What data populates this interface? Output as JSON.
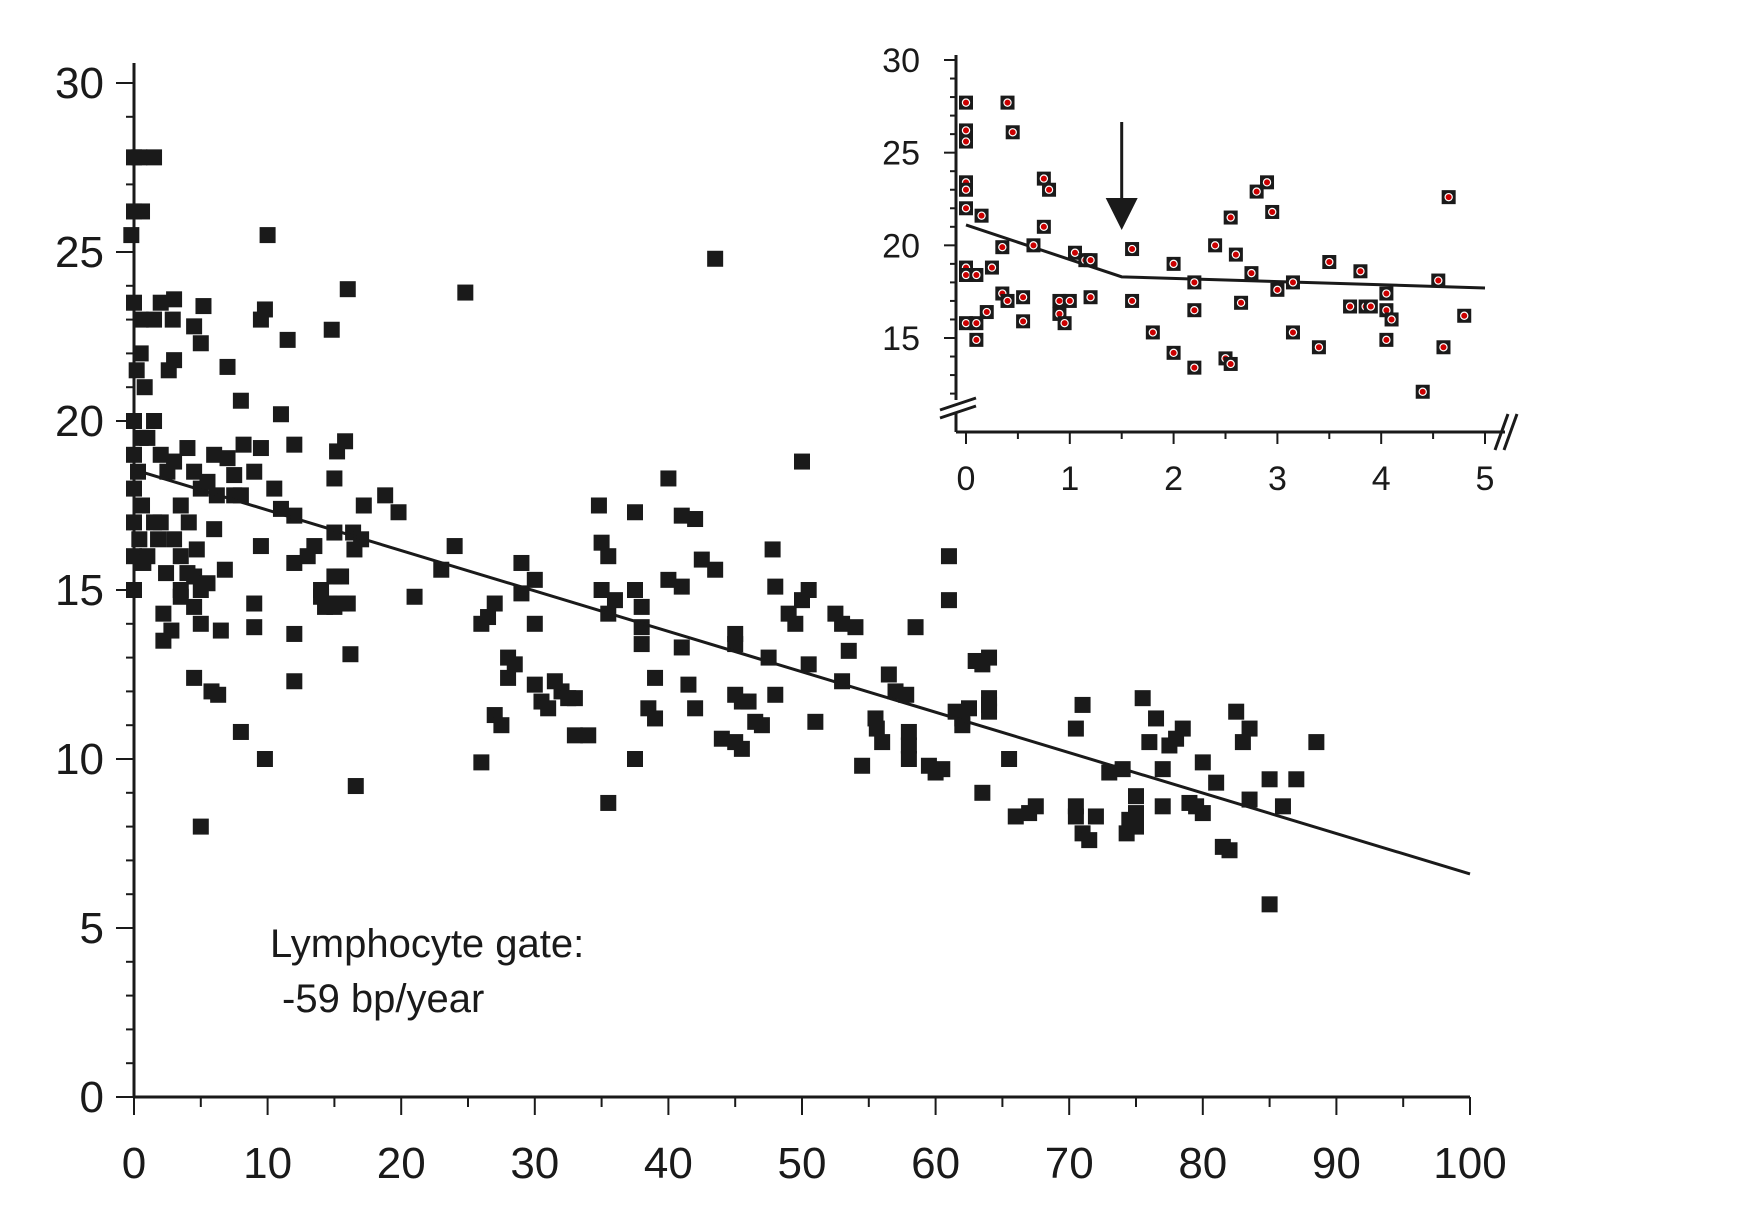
{
  "chart_data": [
    {
      "type": "scatter",
      "title": "",
      "xlabel": "",
      "ylabel": "",
      "xlim": [
        0,
        100
      ],
      "ylim": [
        0,
        30
      ],
      "x_ticks": [
        "0",
        "10",
        "20",
        "30",
        "40",
        "50",
        "60",
        "70",
        "80",
        "90",
        "100"
      ],
      "y_ticks": [
        "0",
        "5",
        "10",
        "15",
        "20",
        "25",
        "30"
      ],
      "annotation_lines": [
        "Lymphocyte gate:",
        "-59 bp/year"
      ],
      "fit_line": {
        "x": [
          0.5,
          100
        ],
        "y": [
          18.5,
          6.6
        ]
      },
      "marker_color": "#1a1a1a",
      "grid": false,
      "points": [
        [
          0,
          27.8
        ],
        [
          0.4,
          27.8
        ],
        [
          1.5,
          27.8
        ],
        [
          0,
          26.2
        ],
        [
          0.6,
          26.2
        ],
        [
          -0.2,
          25.5
        ],
        [
          0,
          23.5
        ],
        [
          0.5,
          23
        ],
        [
          0.5,
          22
        ],
        [
          0.2,
          21.5
        ],
        [
          0.8,
          21
        ],
        [
          0,
          20
        ],
        [
          0.5,
          19.5
        ],
        [
          0,
          19
        ],
        [
          0.3,
          18.5
        ],
        [
          0,
          18
        ],
        [
          0.6,
          17.5
        ],
        [
          0,
          17
        ],
        [
          0.4,
          16.5
        ],
        [
          0,
          16
        ],
        [
          0.7,
          15.8
        ],
        [
          0,
          15
        ],
        [
          1,
          16
        ],
        [
          1.5,
          17
        ],
        [
          1.8,
          16.5
        ],
        [
          1,
          19.5
        ],
        [
          1.5,
          20
        ],
        [
          2,
          19
        ],
        [
          2.5,
          18.5
        ],
        [
          3,
          18.8
        ],
        [
          2,
          17
        ],
        [
          3,
          16.5
        ],
        [
          2.4,
          15.5
        ],
        [
          3.5,
          16
        ],
        [
          2.2,
          14.3
        ],
        [
          2.8,
          13.8
        ],
        [
          2.2,
          13.5
        ],
        [
          3.5,
          15
        ],
        [
          2,
          23.5
        ],
        [
          1.5,
          23
        ],
        [
          3,
          23.6
        ],
        [
          2.9,
          23
        ],
        [
          3,
          21.8
        ],
        [
          2.6,
          21.5
        ],
        [
          4,
          19.2
        ],
        [
          4.5,
          18.5
        ],
        [
          3.5,
          17.5
        ],
        [
          4.1,
          17
        ],
        [
          4.7,
          16.2
        ],
        [
          4,
          15.5
        ],
        [
          4.5,
          15.4
        ],
        [
          5,
          15
        ],
        [
          3.5,
          14.8
        ],
        [
          4.5,
          14.5
        ],
        [
          5,
          14
        ],
        [
          4.5,
          22.8
        ],
        [
          5,
          22.3
        ],
        [
          5.2,
          23.4
        ],
        [
          5,
          18
        ],
        [
          5.5,
          18.2
        ],
        [
          6,
          19
        ],
        [
          6.2,
          17.8
        ],
        [
          6,
          16.8
        ],
        [
          7,
          18.9
        ],
        [
          7.5,
          18.4
        ],
        [
          7.5,
          17.8
        ],
        [
          6.8,
          15.6
        ],
        [
          6.5,
          13.8
        ],
        [
          5.5,
          15.2
        ],
        [
          5.8,
          12
        ],
        [
          6.3,
          11.9
        ],
        [
          4.5,
          12.4
        ],
        [
          7,
          21.6
        ],
        [
          8,
          20.6
        ],
        [
          8.2,
          19.3
        ],
        [
          8,
          17.8
        ],
        [
          9,
          18.5
        ],
        [
          9.5,
          19.2
        ],
        [
          9.5,
          16.3
        ],
        [
          9,
          14.6
        ],
        [
          9,
          13.9
        ],
        [
          8,
          10.8
        ],
        [
          9.8,
          10
        ],
        [
          5,
          8
        ],
        [
          9.5,
          23
        ],
        [
          9.8,
          23.3
        ],
        [
          10,
          25.5
        ],
        [
          10.5,
          18
        ],
        [
          11,
          17.4
        ],
        [
          11,
          20.2
        ],
        [
          11.5,
          22.4
        ],
        [
          12,
          19.3
        ],
        [
          12,
          17.2
        ],
        [
          12,
          15.8
        ],
        [
          12,
          13.7
        ],
        [
          12,
          12.3
        ],
        [
          13,
          16
        ],
        [
          13.5,
          16.3
        ],
        [
          14,
          15
        ],
        [
          14,
          14.8
        ],
        [
          14.3,
          14.5
        ],
        [
          14.6,
          14.6
        ],
        [
          15,
          16.7
        ],
        [
          15,
          15.4
        ],
        [
          15.5,
          15.4
        ],
        [
          15,
          14.5
        ],
        [
          15.5,
          14.6
        ],
        [
          16,
          14.6
        ],
        [
          14.8,
          22.7
        ],
        [
          15.2,
          19.1
        ],
        [
          15.8,
          19.4
        ],
        [
          15,
          18.3
        ],
        [
          16,
          23.9
        ],
        [
          16.4,
          16.7
        ],
        [
          16.5,
          16.2
        ],
        [
          17,
          16.5
        ],
        [
          16.2,
          13.1
        ],
        [
          16.6,
          9.2
        ],
        [
          17.2,
          17.5
        ],
        [
          18.8,
          17.8
        ],
        [
          19.8,
          17.3
        ],
        [
          21,
          14.8
        ],
        [
          23,
          15.6
        ],
        [
          24,
          16.3
        ],
        [
          24.8,
          23.8
        ],
        [
          26,
          14
        ],
        [
          26.5,
          14.2
        ],
        [
          27,
          14.6
        ],
        [
          27,
          11.3
        ],
        [
          27.5,
          11
        ],
        [
          28,
          13
        ],
        [
          28.5,
          12.8
        ],
        [
          28,
          12.4
        ],
        [
          29,
          15.8
        ],
        [
          29,
          14.9
        ],
        [
          30,
          15.3
        ],
        [
          30,
          14
        ],
        [
          30,
          12.2
        ],
        [
          30.5,
          11.7
        ],
        [
          31,
          11.5
        ],
        [
          31.5,
          12.3
        ],
        [
          32,
          12
        ],
        [
          32.5,
          11.8
        ],
        [
          33,
          11.8
        ],
        [
          33,
          10.7
        ],
        [
          34,
          10.7
        ],
        [
          26,
          9.9
        ],
        [
          34.8,
          17.5
        ],
        [
          35,
          16.4
        ],
        [
          35.5,
          16
        ],
        [
          35,
          15
        ],
        [
          36,
          14.7
        ],
        [
          35.5,
          14.3
        ],
        [
          35.5,
          8.7
        ],
        [
          37.5,
          17.3
        ],
        [
          37.5,
          15
        ],
        [
          38,
          14.5
        ],
        [
          38,
          13.9
        ],
        [
          38,
          13.4
        ],
        [
          39,
          12.4
        ],
        [
          38.5,
          11.5
        ],
        [
          39,
          11.2
        ],
        [
          37.5,
          10
        ],
        [
          40,
          18.3
        ],
        [
          40,
          15.3
        ],
        [
          41,
          15.1
        ],
        [
          41,
          13.3
        ],
        [
          41.5,
          12.2
        ],
        [
          41,
          17.2
        ],
        [
          42,
          17.1
        ],
        [
          42.5,
          15.9
        ],
        [
          42,
          11.5
        ],
        [
          43.5,
          15.6
        ],
        [
          43.5,
          24.8
        ],
        [
          45,
          13.7
        ],
        [
          45,
          13.4
        ],
        [
          45,
          11.9
        ],
        [
          45.5,
          11.7
        ],
        [
          46,
          11.7
        ],
        [
          44,
          10.6
        ],
        [
          45,
          10.5
        ],
        [
          45.5,
          10.3
        ],
        [
          46.5,
          11.1
        ],
        [
          47,
          11
        ],
        [
          47.5,
          13
        ],
        [
          47.8,
          16.2
        ],
        [
          48,
          15.1
        ],
        [
          48,
          11.9
        ],
        [
          49,
          14.3
        ],
        [
          49.5,
          14
        ],
        [
          50,
          18.8
        ],
        [
          50,
          14.7
        ],
        [
          50.5,
          15
        ],
        [
          50.5,
          12.8
        ],
        [
          51,
          11.1
        ],
        [
          52.5,
          14.3
        ],
        [
          53,
          14
        ],
        [
          53.5,
          13.2
        ],
        [
          53,
          12.3
        ],
        [
          54,
          13.9
        ],
        [
          54.5,
          9.8
        ],
        [
          55.5,
          11.2
        ],
        [
          55.6,
          10.9
        ],
        [
          56,
          10.5
        ],
        [
          56.5,
          12.5
        ],
        [
          57,
          12
        ],
        [
          57.8,
          11.9
        ],
        [
          58,
          10.8
        ],
        [
          58,
          10.4
        ],
        [
          58,
          10
        ],
        [
          58.5,
          13.9
        ],
        [
          59.5,
          9.8
        ],
        [
          60,
          9.6
        ],
        [
          60.5,
          9.7
        ],
        [
          61,
          16
        ],
        [
          61,
          14.7
        ],
        [
          61.5,
          11.4
        ],
        [
          62,
          11.2
        ],
        [
          62.5,
          11.5
        ],
        [
          62,
          11
        ],
        [
          63,
          12.9
        ],
        [
          63.5,
          12.8
        ],
        [
          64,
          13
        ],
        [
          64,
          11.8
        ],
        [
          64,
          11.6
        ],
        [
          64,
          11.4
        ],
        [
          63.5,
          9
        ],
        [
          65.5,
          10
        ],
        [
          66,
          8.3
        ],
        [
          67,
          8.4
        ],
        [
          67.5,
          8.6
        ],
        [
          70.5,
          8.6
        ],
        [
          70.5,
          8.3
        ],
        [
          71,
          7.8
        ],
        [
          70.5,
          10.9
        ],
        [
          71,
          11.6
        ],
        [
          71.5,
          7.6
        ],
        [
          72,
          8.3
        ],
        [
          73,
          9.6
        ],
        [
          74,
          9.7
        ],
        [
          74.5,
          8.2
        ],
        [
          74.3,
          7.8
        ],
        [
          75,
          8.9
        ],
        [
          75,
          8
        ],
        [
          75.5,
          11.8
        ],
        [
          75,
          8.4
        ],
        [
          76,
          10.5
        ],
        [
          76.5,
          11.2
        ],
        [
          77,
          9.7
        ],
        [
          77.5,
          10.4
        ],
        [
          77,
          8.6
        ],
        [
          78,
          10.6
        ],
        [
          78.5,
          10.9
        ],
        [
          79,
          8.7
        ],
        [
          79.5,
          8.6
        ],
        [
          80,
          9.9
        ],
        [
          80,
          8.4
        ],
        [
          81,
          9.3
        ],
        [
          81.5,
          7.4
        ],
        [
          82,
          7.3
        ],
        [
          82.5,
          11.4
        ],
        [
          83,
          10.5
        ],
        [
          83.5,
          10.9
        ],
        [
          83.5,
          8.8
        ],
        [
          85,
          5.7
        ],
        [
          85,
          9.4
        ],
        [
          86,
          8.6
        ],
        [
          87,
          9.4
        ],
        [
          88.5,
          10.5
        ]
      ]
    },
    {
      "type": "scatter",
      "title": "",
      "xlabel": "",
      "ylabel": "",
      "xlim": [
        0,
        5
      ],
      "ylim": [
        10,
        30
      ],
      "x_ticks": [
        "0",
        "1",
        "2",
        "3",
        "4",
        "5"
      ],
      "y_ticks": [
        "15",
        "20",
        "25",
        "30"
      ],
      "fit_line": {
        "x": [
          0,
          1.5,
          5
        ],
        "y": [
          21.1,
          18.3,
          17.7
        ]
      },
      "arrow_at_x": 1.5,
      "marker_color": "#1a1a1a",
      "marker_dot_color": "#cc0000",
      "grid": false,
      "points": [
        [
          0,
          27.7
        ],
        [
          0,
          26.2
        ],
        [
          0,
          25.6
        ],
        [
          0,
          23.4
        ],
        [
          0,
          23
        ],
        [
          0,
          22
        ],
        [
          0,
          18.8
        ],
        [
          0,
          18.4
        ],
        [
          0,
          15.8
        ],
        [
          0.1,
          18.4
        ],
        [
          0.1,
          15.8
        ],
        [
          0.1,
          14.9
        ],
        [
          0.15,
          21.6
        ],
        [
          0.2,
          16.4
        ],
        [
          0.25,
          18.8
        ],
        [
          0.35,
          19.9
        ],
        [
          0.35,
          17.4
        ],
        [
          0.4,
          27.7
        ],
        [
          0.4,
          17
        ],
        [
          0.45,
          26.1
        ],
        [
          0.55,
          17.2
        ],
        [
          0.55,
          15.9
        ],
        [
          0.65,
          20
        ],
        [
          0.75,
          23.6
        ],
        [
          0.75,
          21
        ],
        [
          0.8,
          23
        ],
        [
          0.9,
          17
        ],
        [
          0.9,
          16.3
        ],
        [
          0.95,
          15.8
        ],
        [
          1,
          17
        ],
        [
          1.05,
          19.6
        ],
        [
          1.15,
          19.2
        ],
        [
          1.2,
          19.2
        ],
        [
          1.2,
          17.2
        ],
        [
          1.6,
          19.8
        ],
        [
          1.6,
          17
        ],
        [
          1.8,
          15.3
        ],
        [
          2,
          19
        ],
        [
          2,
          14.2
        ],
        [
          2.2,
          18
        ],
        [
          2.2,
          16.5
        ],
        [
          2.2,
          13.4
        ],
        [
          2.4,
          20
        ],
        [
          2.5,
          13.9
        ],
        [
          2.55,
          21.5
        ],
        [
          2.55,
          13.6
        ],
        [
          2.6,
          19.5
        ],
        [
          2.65,
          16.9
        ],
        [
          2.75,
          18.5
        ],
        [
          2.8,
          22.9
        ],
        [
          2.9,
          23.4
        ],
        [
          2.95,
          21.8
        ],
        [
          3,
          17.6
        ],
        [
          3.15,
          18
        ],
        [
          3.15,
          15.3
        ],
        [
          3.4,
          14.5
        ],
        [
          3.5,
          19.1
        ],
        [
          3.7,
          16.7
        ],
        [
          3.8,
          18.6
        ],
        [
          3.85,
          16.7
        ],
        [
          3.9,
          16.7
        ],
        [
          4.05,
          17.4
        ],
        [
          4.05,
          16.5
        ],
        [
          4.05,
          14.9
        ],
        [
          4.1,
          16
        ],
        [
          4.4,
          12.1
        ],
        [
          4.55,
          18.1
        ],
        [
          4.6,
          14.5
        ],
        [
          4.65,
          22.6
        ],
        [
          4.8,
          16.2
        ]
      ]
    }
  ]
}
